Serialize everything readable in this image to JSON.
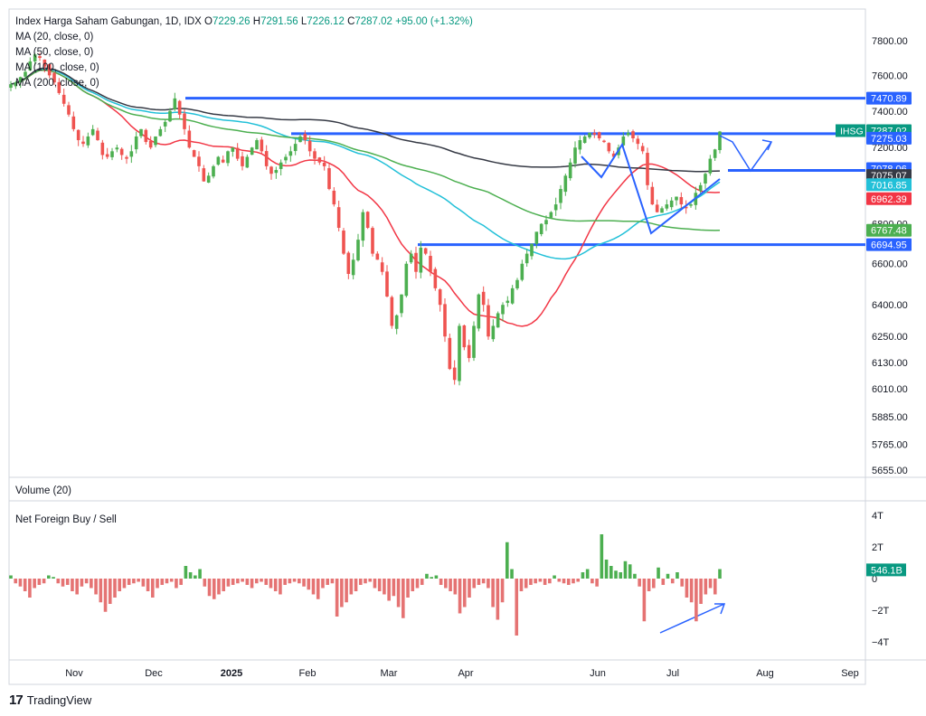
{
  "header": {
    "title": "Index Harga Saham Gabungan, 1D, IDX",
    "open_label": "O",
    "open": "7229.26",
    "high_label": "H",
    "high": "7291.56",
    "low_label": "L",
    "low": "7226.12",
    "close_label": "C",
    "close": "7287.02",
    "change": "+95.00 (+1.32%)"
  },
  "indicators": [
    "MA (20, close, 0)",
    "MA (50, close, 0)",
    "MA (100, close, 0)",
    "MA (200, close, 0)"
  ],
  "volume_pane_label": "Volume (20)",
  "foreign_pane_label": "Net Foreign Buy / Sell",
  "footer": {
    "brand": "TradingView"
  },
  "colors": {
    "up": "#4caf50",
    "down": "#ef5350",
    "ma20": "#f23645",
    "ma50": "#22c0d8",
    "ma100": "#4caf50",
    "ma200": "#363a45",
    "drawing": "#2962ff",
    "foreign_up": "#4caf50",
    "foreign_down": "#e57373"
  },
  "chart_data": {
    "type": "candlestick",
    "symbol": "IHSG",
    "price_axis_ticks": [
      7800,
      7600,
      7400,
      7200,
      7075,
      6800,
      6600,
      6400,
      6250,
      6130,
      6010,
      5885,
      5765,
      5655
    ],
    "price_axis_labels": [
      "7800.00",
      "7600.00",
      "7400.00",
      "7200.00",
      "7075.00",
      "6800.00",
      "6600.00",
      "6400.00",
      "6250.00",
      "6130.00",
      "6010.00",
      "5885.00",
      "5765.00",
      "5655.00"
    ],
    "time_axis_labels": [
      "Nov",
      "Dec",
      "2025",
      "Feb",
      "Mar",
      "Apr",
      "Jun",
      "Jul",
      "Aug",
      "Sep"
    ],
    "price_markers": [
      {
        "label": "7470.89",
        "color": "#2962ff",
        "text_color": "#ffffff"
      },
      {
        "label": "7287.02",
        "color": "#089981",
        "text_color": "#ffffff",
        "tag": "IHSG"
      },
      {
        "label": "7275.03",
        "color": "#2962ff",
        "text_color": "#ffffff"
      },
      {
        "label": "7078.06",
        "color": "#2962ff",
        "text_color": "#ffffff"
      },
      {
        "label": "7075.07",
        "color": "#363a45",
        "text_color": "#ffffff"
      },
      {
        "label": "7016.85",
        "color": "#22c0d8",
        "text_color": "#ffffff"
      },
      {
        "label": "6962.39",
        "color": "#f23645",
        "text_color": "#ffffff"
      },
      {
        "label": "6767.48",
        "color": "#4caf50",
        "text_color": "#ffffff"
      },
      {
        "label": "6694.95",
        "color": "#2962ff",
        "text_color": "#ffffff"
      }
    ],
    "horizontal_levels": [
      7470.89,
      7275.03,
      7078.06,
      6694.95
    ],
    "closes": [
      7550,
      7560,
      7590,
      7620,
      7680,
      7720,
      7700,
      7650,
      7600,
      7560,
      7500,
      7440,
      7380,
      7300,
      7240,
      7220,
      7260,
      7300,
      7240,
      7160,
      7150,
      7180,
      7200,
      7160,
      7140,
      7180,
      7260,
      7300,
      7230,
      7200,
      7260,
      7300,
      7340,
      7400,
      7470,
      7380,
      7300,
      7200,
      7150,
      7100,
      7020,
      7050,
      7100,
      7150,
      7120,
      7180,
      7200,
      7140,
      7100,
      7150,
      7200,
      7240,
      7180,
      7100,
      7060,
      7080,
      7120,
      7150,
      7180,
      7220,
      7260,
      7240,
      7180,
      7140,
      7120,
      7100,
      6980,
      6900,
      6780,
      6650,
      6550,
      6620,
      6720,
      6860,
      6780,
      6650,
      6620,
      6560,
      6440,
      6300,
      6350,
      6450,
      6600,
      6650,
      6560,
      6680,
      6650,
      6560,
      6480,
      6400,
      6250,
      6100,
      6050,
      6300,
      6200,
      6150,
      6300,
      6450,
      6400,
      6250,
      6300,
      6360,
      6400,
      6420,
      6480,
      6520,
      6600,
      6650,
      6700,
      6760,
      6800,
      6820,
      6860,
      6900,
      6980,
      7050,
      7120,
      7200,
      7240,
      7260,
      7280,
      7270,
      7250,
      7230,
      7180,
      7150,
      7200,
      7260,
      7280,
      7250,
      7220,
      7180,
      7000,
      6900,
      6860,
      6880,
      6900,
      6920,
      6940,
      6900,
      6880,
      6900,
      6960,
      7000,
      7060,
      7140,
      7190,
      7287
    ],
    "ma_series": [
      {
        "name": "MA (20, close, 0)",
        "color": "#f23645",
        "last": 6962.39
      },
      {
        "name": "MA (50, close, 0)",
        "color": "#22c0d8",
        "last": 7016.85
      },
      {
        "name": "MA (100, close, 0)",
        "color": "#4caf50",
        "last": 6767.48
      },
      {
        "name": "MA (200, close, 0)",
        "color": "#363a45",
        "last": 7075.07
      }
    ],
    "foreign_axis_ticks": [
      4,
      2,
      0,
      -2,
      -4
    ],
    "foreign_axis_labels": [
      "4T",
      "2T",
      "0",
      "−2T",
      "−4T"
    ],
    "foreign_last_label": "546.1B",
    "net_foreign": [
      0.2,
      -0.3,
      -0.5,
      -0.8,
      -1.2,
      -0.6,
      -0.4,
      -0.3,
      0.2,
      0.1,
      -0.3,
      -0.5,
      -0.4,
      -0.8,
      -1.0,
      -0.5,
      -0.3,
      -0.6,
      -1.0,
      -1.5,
      -2.1,
      -1.6,
      -1.2,
      -0.8,
      -0.6,
      -0.4,
      -0.3,
      -0.2,
      -0.5,
      -0.8,
      -1.2,
      -0.6,
      -0.4,
      -0.3,
      -0.2,
      -0.6,
      -0.4,
      0.8,
      0.4,
      0.2,
      0.6,
      -0.5,
      -1.1,
      -1.3,
      -1.0,
      -0.8,
      -0.5,
      -0.4,
      -0.3,
      -0.2,
      -0.4,
      -0.6,
      -0.3,
      -0.2,
      -0.4,
      -0.6,
      -0.8,
      -1.0,
      -0.4,
      -0.3,
      -0.2,
      -0.3,
      -0.5,
      -0.7,
      -1.0,
      -1.3,
      -0.6,
      -0.4,
      -0.3,
      -2.4,
      -1.8,
      -1.5,
      -1.0,
      -0.8,
      -0.4,
      -0.3,
      -0.2,
      -0.6,
      -0.8,
      -1.0,
      -1.4,
      -1.1,
      -1.8,
      -2.5,
      -1.2,
      -0.8,
      -0.6,
      -0.4,
      0.3,
      0.1,
      0.2,
      -0.4,
      -0.6,
      -0.8,
      -1.0,
      -2.2,
      -1.8,
      -1.2,
      -0.6,
      -0.4,
      -0.3,
      -0.6,
      -1.8,
      -2.6,
      -1.5,
      2.3,
      0.6,
      -3.6,
      -0.8,
      -0.6,
      -0.4,
      -0.3,
      -0.2,
      -0.4,
      -0.3,
      0.2,
      -0.2,
      -0.3,
      -0.4,
      -0.3,
      -0.2,
      0.4,
      0.6,
      -0.3,
      -0.5,
      2.8,
      1.2,
      0.8,
      0.5,
      0.4,
      1.1,
      0.9,
      0.3,
      -0.5,
      -2.7,
      -0.8,
      -0.6,
      0.7,
      -0.4,
      0.3,
      -0.3,
      0.4,
      -0.5,
      -1.2,
      -1.5,
      -2.7,
      -1.6,
      -1.0,
      -0.6,
      -1.0,
      0.6
    ]
  }
}
